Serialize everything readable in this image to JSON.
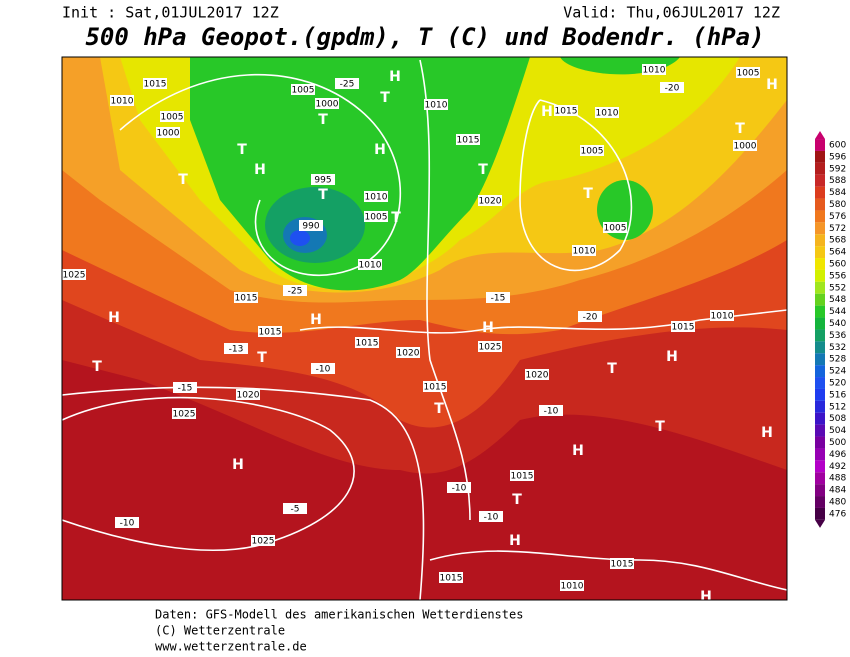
{
  "header": {
    "init": "Init : Sat,01JUL2017 12Z",
    "valid": "Valid: Thu,06JUL2017 12Z",
    "title": "500 hPa Geopot.(gpdm), T (C) und Bodendr. (hPa)"
  },
  "map": {
    "labels": [
      "1015",
      "1010",
      "1005",
      "1000",
      "1005",
      "1000",
      "-25",
      "T",
      "H",
      "T",
      "H",
      "T",
      "H",
      "T",
      "995",
      "T",
      "1010",
      "1005",
      "T",
      "990",
      "1010",
      "-25",
      "1015",
      "H",
      "1015",
      "T",
      "1015",
      "1020",
      "1020",
      "1025",
      "1025",
      "H",
      "T",
      "H",
      "1025",
      "1015",
      "1015",
      "1010",
      "H",
      "H",
      "T",
      "1015",
      "H",
      "T",
      "1015",
      "H",
      "1025",
      "1020",
      "1005",
      "T",
      "1010",
      "1005",
      "1010",
      "1015",
      "H",
      "1010",
      "1015",
      "T",
      "1020",
      "1010",
      "1005",
      "H",
      "T",
      "1000",
      "1015",
      "1010",
      "H",
      "T",
      "T",
      "H",
      "-15",
      "-20",
      "-10",
      "-13",
      "-15",
      "-10",
      "-10",
      "-10",
      "-10",
      "-5",
      "-20"
    ]
  },
  "colorbar": {
    "levels": [
      600,
      596,
      592,
      588,
      584,
      580,
      576,
      572,
      568,
      564,
      560,
      556,
      552,
      548,
      544,
      540,
      536,
      532,
      528,
      524,
      520,
      516,
      512,
      508,
      504,
      500,
      496,
      492,
      488,
      484,
      480,
      476
    ],
    "colors": [
      "#c8006e",
      "#a01414",
      "#b41e1e",
      "#c82828",
      "#dc3c1e",
      "#e65a1e",
      "#f0781e",
      "#f59628",
      "#f5b41e",
      "#f5c814",
      "#f0e600",
      "#d2f000",
      "#a0e61e",
      "#64d21e",
      "#28c828",
      "#14b43c",
      "#14a064",
      "#148c8c",
      "#1478b4",
      "#1464dc",
      "#1e50f0",
      "#1e3cf0",
      "#2828dc",
      "#3c14c8",
      "#5a0ab4",
      "#7800a0",
      "#9600b4",
      "#b400c8",
      "#a000a0",
      "#820082",
      "#640064",
      "#460046"
    ]
  },
  "footer": {
    "line1": "Daten: GFS-Modell des amerikanischen Wetterdienstes",
    "line2": "(C) Wetterzentrale",
    "line3": "www.wetterzentrale.de"
  }
}
